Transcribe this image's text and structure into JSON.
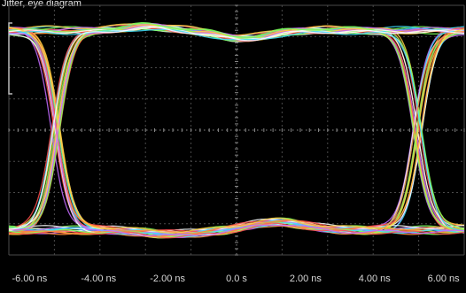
{
  "screen": {
    "top_label": "Jitter, eye diagram",
    "background": "#000000",
    "grid_color": "#4a4a4a",
    "grid_dot_color": "#8a8a8a"
  },
  "chart_data": {
    "type": "line",
    "title": "",
    "xlabel": "",
    "ylabel": "",
    "xlim": [
      -6.6,
      6.6
    ],
    "ylim": [
      -1.25,
      1.25
    ],
    "x_ticks": [
      {
        "value": -6,
        "label": "-6.00 ns"
      },
      {
        "value": -4,
        "label": "-4.00 ns"
      },
      {
        "value": -2,
        "label": "-2.00 ns"
      },
      {
        "value": 0,
        "label": "0.0 s"
      },
      {
        "value": 2,
        "label": "2.00 ns"
      },
      {
        "value": 4,
        "label": "4.00 ns"
      },
      {
        "value": 6,
        "label": "6.00 ns"
      }
    ],
    "crossings_ns": [
      -5.25,
      5.25
    ],
    "high_level": 1.0,
    "low_level": -1.0,
    "trace_colors": [
      "#ff4d4d",
      "#ffd23f",
      "#7dff5a",
      "#3fe0ff",
      "#ff8c3a",
      "#c56bff",
      "#ffffff"
    ],
    "legend": "none",
    "grid": true
  }
}
